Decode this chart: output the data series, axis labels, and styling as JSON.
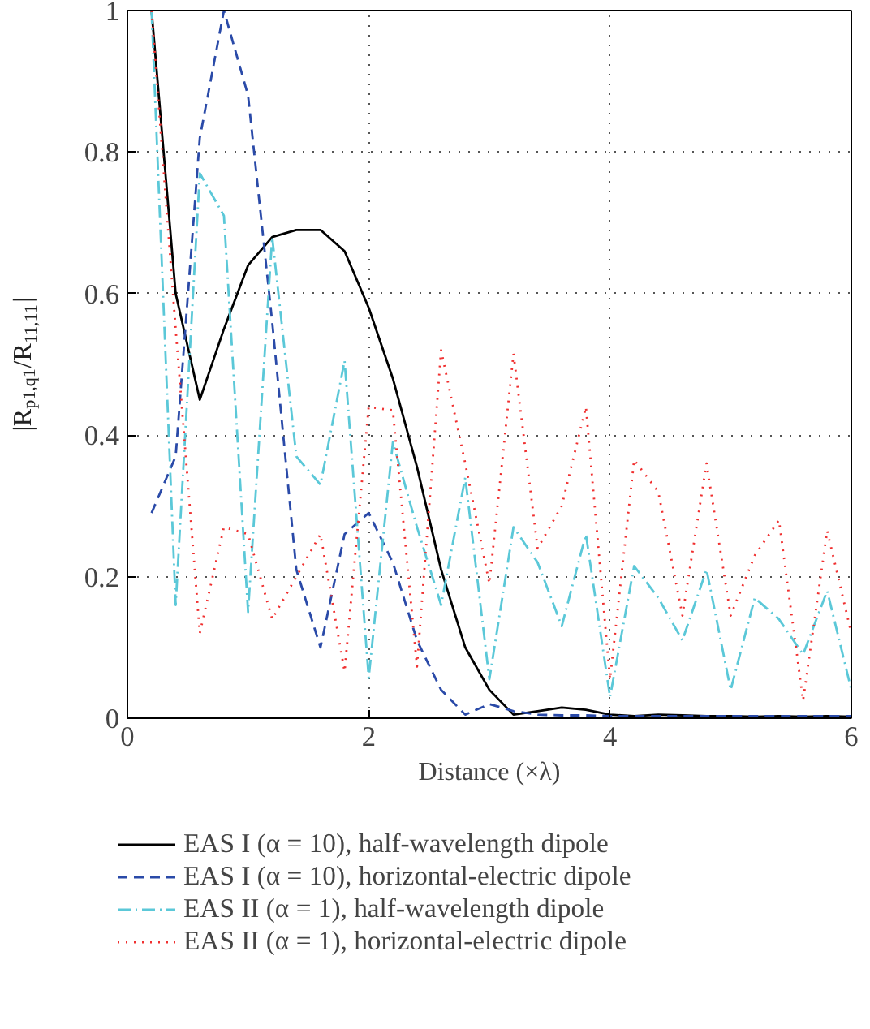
{
  "chart_data": {
    "type": "line",
    "xlabel": "Distance (×λ)",
    "ylabel": "|R$_{p1,q1}$/R$_{11,11}$|",
    "x": [
      0.2,
      0.4,
      0.6,
      0.8,
      1.0,
      1.2,
      1.4,
      1.6,
      1.8,
      2.0,
      2.2,
      2.4,
      2.6,
      2.8,
      3.0,
      3.2,
      3.4,
      3.6,
      3.8,
      4.0,
      4.2,
      4.4,
      4.6,
      4.8,
      5.0,
      5.2,
      5.4,
      5.6,
      5.8,
      6.0
    ],
    "series": [
      {
        "name": "EAS I (α = 10), half-wavelength dipole",
        "color": "#000000",
        "line_style": "solid",
        "values": [
          1.0,
          0.6,
          0.45,
          0.55,
          0.64,
          0.68,
          0.69,
          0.69,
          0.66,
          0.58,
          0.48,
          0.355,
          0.21,
          0.1,
          0.04,
          0.005,
          0.01,
          0.015,
          0.012,
          0.005,
          0.003,
          0.005,
          0.004,
          0.003,
          0.003,
          0.002,
          0.003,
          0.002,
          0.003,
          0.002
        ]
      },
      {
        "name": "EAS I (α = 10), horizontal-electric dipole",
        "color": "#2a4aa8",
        "line_style": "dashed",
        "values": [
          0.29,
          0.37,
          0.82,
          1.0,
          0.88,
          0.56,
          0.21,
          0.1,
          0.26,
          0.29,
          0.22,
          0.11,
          0.04,
          0.005,
          0.02,
          0.01,
          0.005,
          0.004,
          0.004,
          0.003,
          0.003,
          0.003,
          0.003,
          0.003,
          0.003,
          0.003,
          0.003,
          0.003,
          0.003,
          0.003
        ]
      },
      {
        "name": "EAS II (α = 1), half-wavelength dipole",
        "color": "#5bc8d8",
        "line_style": "dashdot",
        "values": [
          1.0,
          0.16,
          0.77,
          0.71,
          0.15,
          0.68,
          0.37,
          0.33,
          0.505,
          0.057,
          0.39,
          0.27,
          0.16,
          0.34,
          0.055,
          0.27,
          0.22,
          0.13,
          0.26,
          0.03,
          0.215,
          0.17,
          0.11,
          0.21,
          0.04,
          0.17,
          0.14,
          0.09,
          0.18,
          0.04
        ]
      },
      {
        "name": "EAS II (α = 1), horizontal-electric dipole",
        "color": "#f03030",
        "line_style": "dotted",
        "values": [
          1.0,
          0.55,
          0.12,
          0.27,
          0.26,
          0.14,
          0.2,
          0.26,
          0.066,
          0.44,
          0.435,
          0.073,
          0.52,
          0.36,
          0.19,
          0.515,
          0.24,
          0.3,
          0.44,
          0.055,
          0.365,
          0.32,
          0.145,
          0.36,
          0.145,
          0.23,
          0.28,
          0.025,
          0.265,
          0.12
        ]
      }
    ],
    "xlim": [
      0,
      6
    ],
    "ylim": [
      0,
      1
    ],
    "xticks": [
      0,
      2,
      4,
      6
    ],
    "yticks": [
      0,
      0.2,
      0.4,
      0.6,
      0.8,
      1
    ],
    "grid": true,
    "legend": "bottom"
  }
}
